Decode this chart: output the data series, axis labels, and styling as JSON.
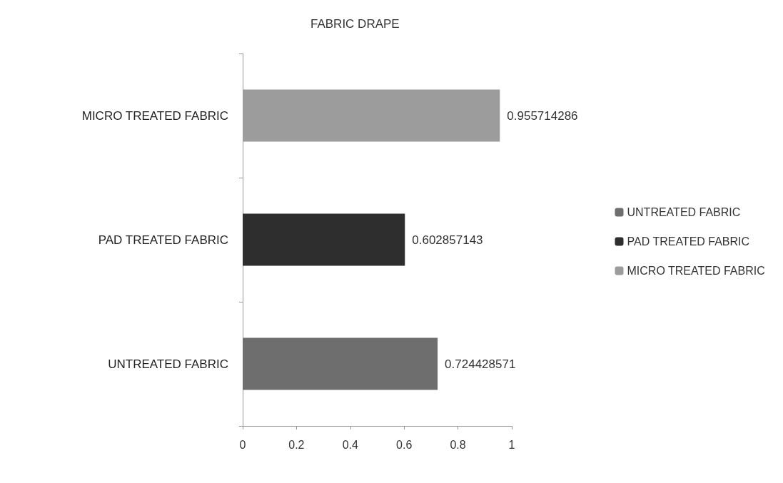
{
  "chart_data": {
    "type": "bar",
    "title": "FABRIC DRAPE",
    "orientation": "horizontal",
    "stacked": true,
    "categories": [
      "MICRO TREATED FABRIC",
      "PAD TREATED FABRIC",
      "UNTREATED FABRIC"
    ],
    "series": [
      {
        "name": "UNTREATED FABRIC",
        "color": "#6e6e6e",
        "values": [
          null,
          null,
          0.724428571
        ]
      },
      {
        "name": "PAD TREATED FABRIC",
        "color": "#2e2e2e",
        "values": [
          null,
          0.602857143,
          null
        ]
      },
      {
        "name": "MICRO TREATED FABRIC",
        "color": "#9c9c9c",
        "values": [
          0.955714286,
          null,
          null
        ]
      }
    ],
    "xlim": [
      0,
      1
    ],
    "xticks": [
      0,
      0.2,
      0.4,
      0.6,
      0.8,
      1
    ],
    "grid": false,
    "legend": "right",
    "data_labels": true
  }
}
